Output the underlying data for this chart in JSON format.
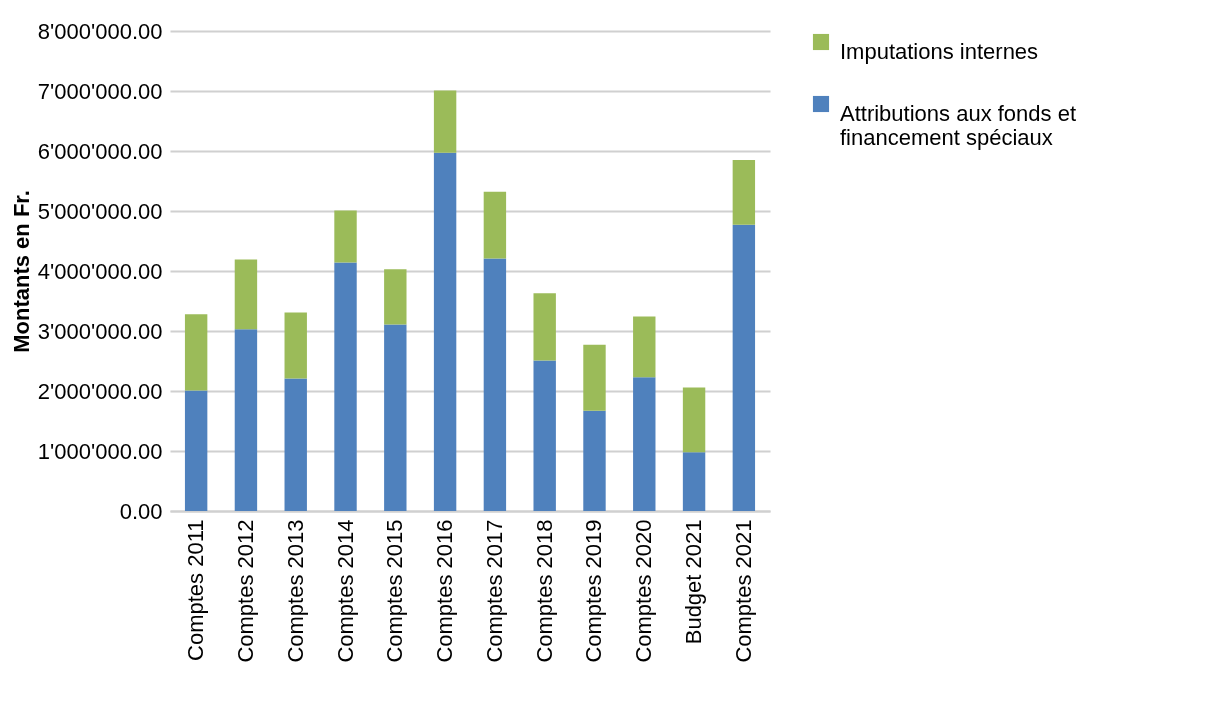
{
  "chart_data": {
    "type": "bar",
    "ylabel": "Montants en Fr.",
    "stacked": true,
    "grid": "y",
    "legend": "right",
    "categories": [
      "Comptes 2011",
      "Comptes 2012",
      "Comptes 2013",
      "Comptes 2014",
      "Comptes 2015",
      "Comptes 2016",
      "Comptes 2017",
      "Comptes 2018",
      "Comptes 2019",
      "Comptes 2020",
      "Budget 2021",
      "Comptes 2021"
    ],
    "series": [
      {
        "name": "Attributions aux fonds et financement spéciaux",
        "color": "#4f81bd",
        "values": [
          2010000,
          3030000,
          2210000,
          4140000,
          3110000,
          5970000,
          4210000,
          2510000,
          1670000,
          2230000,
          980000,
          4770000
        ]
      },
      {
        "name": "Imputations internes",
        "color": "#9bbb59",
        "values": [
          1270000,
          1160000,
          1100000,
          870000,
          920000,
          1040000,
          1110000,
          1120000,
          1100000,
          1010000,
          1080000,
          1080000
        ]
      }
    ],
    "ylim": [
      0,
      8000000
    ],
    "yticks": [
      {
        "value": 0,
        "label": "0.00"
      },
      {
        "value": 1000000,
        "label": "1'000'000.00"
      },
      {
        "value": 2000000,
        "label": "2'000'000.00"
      },
      {
        "value": 3000000,
        "label": "3'000'000.00"
      },
      {
        "value": 4000000,
        "label": "4'000'000.00"
      },
      {
        "value": 5000000,
        "label": "5'000'000.00"
      },
      {
        "value": 6000000,
        "label": "6'000'000.00"
      },
      {
        "value": 7000000,
        "label": "7'000'000.00"
      },
      {
        "value": 8000000,
        "label": "8'000'000.00"
      }
    ]
  }
}
